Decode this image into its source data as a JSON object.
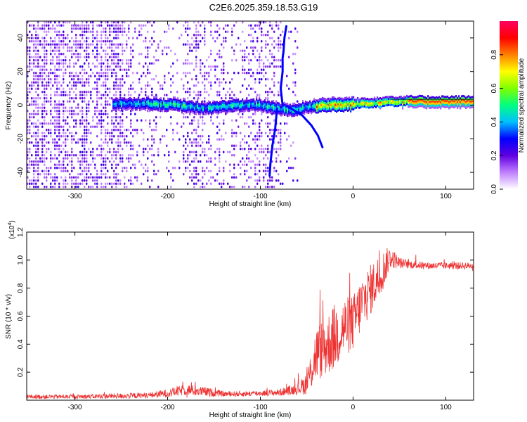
{
  "title": "C2E6.2025.359.18.53.G19",
  "chart_data": [
    {
      "type": "heatmap",
      "name": "spectrogram",
      "xlabel": "Height of straight line (km)",
      "ylabel": "Frequency (Hz)",
      "xlim": [
        -352,
        130
      ],
      "ylim": [
        -50,
        50
      ],
      "xticks": [
        -300,
        -200,
        -100,
        0,
        100
      ],
      "yticks": [
        -40,
        -20,
        0,
        20,
        40
      ],
      "xtick_labels": [
        "-300",
        "-200",
        "-100",
        "0",
        "100"
      ],
      "ytick_labels": [
        "-40",
        "-20",
        "0",
        "20",
        "40"
      ],
      "colorbar": {
        "label": "Normalized spectral amplitude",
        "range": [
          0,
          1
        ],
        "ticks": [
          0.0,
          0.2,
          0.4,
          0.6,
          0.8
        ],
        "tick_labels": [
          "0.0",
          "0.2",
          "0.4",
          "0.6",
          "0.8"
        ],
        "colors": [
          "#ffffff",
          "#c080ff",
          "#6000e0",
          "#0000ff",
          "#00c0ff",
          "#00ff80",
          "#80ff00",
          "#ffff00",
          "#ff8000",
          "#ff0000",
          "#ff0060"
        ]
      },
      "ridge": {
        "description": "dominant signal near 0 Hz",
        "points": [
          [
            -250,
            1
          ],
          [
            -220,
            1
          ],
          [
            -190,
            0
          ],
          [
            -160,
            -2
          ],
          [
            -130,
            0
          ],
          [
            -100,
            0
          ],
          [
            -80,
            -2
          ],
          [
            -65,
            -3
          ],
          [
            -50,
            -1
          ],
          [
            -30,
            0
          ],
          [
            -10,
            0
          ],
          [
            10,
            1
          ],
          [
            40,
            2
          ],
          [
            70,
            2
          ],
          [
            100,
            2
          ],
          [
            130,
            2
          ]
        ]
      },
      "branches": [
        {
          "points": [
            [
              -76,
              0
            ],
            [
              -78,
              10
            ],
            [
              -76,
              20
            ],
            [
              -76,
              28
            ],
            [
              -75,
              32
            ],
            [
              -74,
              40
            ],
            [
              -72,
              47
            ]
          ]
        },
        {
          "points": [
            [
              -82,
              -2
            ],
            [
              -84,
              -14
            ],
            [
              -87,
              -24
            ],
            [
              -89,
              -34
            ],
            [
              -90,
              -42
            ]
          ]
        },
        {
          "points": [
            [
              -70,
              -1
            ],
            [
              -55,
              -6
            ],
            [
              -45,
              -12
            ],
            [
              -38,
              -18
            ],
            [
              -33,
              -25
            ]
          ]
        }
      ]
    },
    {
      "type": "line",
      "name": "snr",
      "xlabel": "Height of straight line (km)",
      "ylabel": "SNR (10 * v/v)",
      "y_multiplier": "(x10^4)",
      "y_multiplier_base": "(x10",
      "y_multiplier_exp": "4",
      "y_multiplier_close": ")",
      "xlim": [
        -352,
        130
      ],
      "ylim": [
        0,
        1.2
      ],
      "xticks": [
        -300,
        -200,
        -100,
        0,
        100
      ],
      "yticks": [
        0.2,
        0.4,
        0.6,
        0.8,
        1.0,
        1.2
      ],
      "xtick_labels": [
        "-300",
        "-200",
        "-100",
        "0",
        "100"
      ],
      "ytick_labels": [
        "0.2",
        "0.4",
        "0.6",
        "0.8",
        "1.0",
        "1.2"
      ],
      "line_color": "#ee3333",
      "envelope": {
        "x": [
          -352,
          -300,
          -250,
          -220,
          -200,
          -180,
          -160,
          -140,
          -120,
          -100,
          -80,
          -60,
          -50,
          -45,
          -40,
          -30,
          -20,
          -10,
          0,
          10,
          20,
          30,
          40,
          50,
          60,
          80,
          100,
          130
        ],
        "y": [
          0.025,
          0.025,
          0.03,
          0.035,
          0.05,
          0.075,
          0.06,
          0.045,
          0.045,
          0.05,
          0.055,
          0.08,
          0.12,
          0.22,
          0.33,
          0.38,
          0.45,
          0.52,
          0.55,
          0.7,
          0.8,
          0.9,
          1.02,
          0.98,
          0.97,
          0.96,
          0.96,
          0.96
        ],
        "noise": [
          0.015,
          0.015,
          0.02,
          0.02,
          0.03,
          0.04,
          0.035,
          0.02,
          0.02,
          0.02,
          0.025,
          0.04,
          0.08,
          0.15,
          0.2,
          0.22,
          0.24,
          0.22,
          0.2,
          0.2,
          0.18,
          0.16,
          0.08,
          0.04,
          0.03,
          0.025,
          0.025,
          0.025
        ]
      }
    }
  ]
}
